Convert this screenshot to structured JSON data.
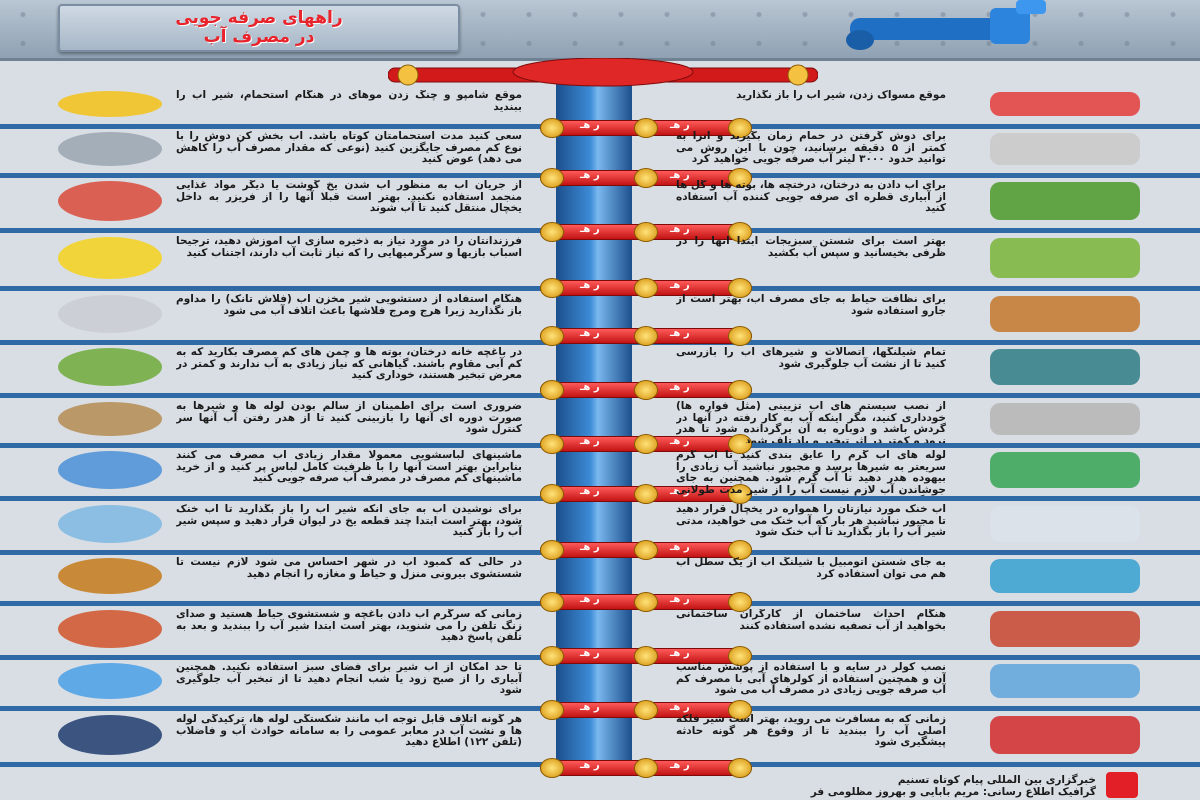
{
  "header": {
    "title_line1": "راههای صرفه جویی",
    "title_line2": "در مصرف آب"
  },
  "valve_label": "ر هـ",
  "left_tips": [
    "موقع شامپو و چنگ زدن موهای در هنگام استحمام، شیر آب را ببندید",
    "سعی کنید مدت استحمامتان کوتاه باشد. آب بخش کن دوش را با نوع کم مصرف جایگزین کنید (نوعی که مقدار مصرف آب را کاهش می دهد) عوض کنید",
    "از جریان آب به منظور آب شدن یخ گوشت یا دیگر مواد غذایی منجمد استفاده نکنید. بهتر است قبلا آنها را از فریزر به داخل یخچال منتقل کنید تا آب شوند",
    "فرزندانتان را در مورد نیاز به ذخیره سازی آب آموزش دهید، ترجیحا اسباب بازیها و سرگرمیهایی را که نیاز ثابت آب دارند، اجتناب کنید",
    "هنگام استفاده از دستشویی شیر مخزن آب (فلاش تانک) را مداوم باز نگذارید زیرا هرج ومرج فلاشها باعث اتلاف آب می شود",
    "در باغچه خانه درختان، بوته ها و چمن های کم مصرف بکارید که به کم آبی مقاوم باشند. گیاهانی که نیاز زیادی به آب ندارند و کمتر در معرض تبخیر هستند، خوداری کنید",
    "ضروری است برای اطمینان از سالم بودن لوله ها و شیرها به صورت دوره ای آنها را بازبینی کنید تا از هدر رفتن آب آنها سر کنترل شود",
    "ماشینهای لباسشویی معمولا مقدار زیادی آب مصرف می کنند بنابراین بهتر است آنها را با ظرفیت کامل لباس پر کنید و از خرید ماشینهای کم مصرف در مصرف آب صرفه جویی کنید",
    "برای نوشیدن آب به جای آنکه شیر آب را باز بگذارید تا آب خنک شود، بهتر است ابتدا چند قطعه یخ در لیوان قرار دهید و سپس شیر آب را باز کنید",
    "در حالی که کمبود آب در شهر احساس می شود لازم نیست تا شستشوی بیرونی منزل و حیاط و مغازه را انجام دهید",
    "زمانی که سرگرم آب دادن باغچه و شستشوی حیاط هستید و صدای زنگ تلفن را می شنوید، بهتر است ابتدا شیر آب را ببندید و بعد به تلفن پاسخ دهید",
    "تا حد امکان از آب شیر برای فضای سبز استفاده نکنید. همچنین آبیاری را از صبح زود یا شب انجام دهید تا از تبخیر آب جلوگیری شود",
    "هر گونه اتلاف قابل توجه آب مانند شکستگی لوله ها، ترکیدگی لوله ها و نشت آب در معابر عمومی را به سامانه حوادث آب و فاضلاب (تلفن ۱۲۲) اطلاع دهید"
  ],
  "right_tips": [
    "موقع مسواک زدن، شیر آب را باز نگذارید",
    "برای دوش گرفتن در حمام زمان بگیرید و آنرا به کمتر از ۵ دقیقه برسانید، چون با این روش می توانید حدود ۳۰۰۰ لیتر آب صرفه جویی خواهید کرد",
    "برای آب دادن به درختان، درختچه ها، بوته ها و گل ها از آبیاری قطره ای صرفه جویی کننده آب استفاده کنید",
    "بهتر است برای شستن سبزیجات ابتدا آنها را در ظرفی بخیسانید و سپس آب بکشید",
    "برای نظافت حیاط به جای مصرف آب، بهتر است از جارو استفاده شود",
    "تمام شیلنگها، اتصالات و شیرهای آب را بازرسی کنید تا از نشت آب جلوگیری شود",
    "از نصب سیستم های آب تزیینی (مثل فواره ها) خودداری کنید، مگر اینکه آب به کار رفته در آنها در گردش باشد و دوباره به آن برگردانده شود تا هدر نرود و کمتر در اثر تبخیر و باد تلف شود",
    "لوله های آب گرم را عایق بندی کنید تا آب گرم سریعتر به شیرها برسد و مجبور نباشید آب زیادی را بیهوده هدر دهید تا آب گرم شود. همچنین به جای جوشاندن آب لازم نیست آب را از شیر مدت طولانی باز نگه دارید",
    "آب خنک مورد نیازتان را همواره در یخچال قرار دهید تا مجبور نباشید هر بار که آب خنک می خواهید، مدتی شیر آب را باز بگذارید تا آب خنک شود",
    "به جای شستن اتومبیل با شیلنگ آب از یک سطل آب هم می توان استفاده کرد",
    "هنگام احداث ساختمان از کارگران ساختمانی بخواهید از آب تصفیه نشده استفاده کنند",
    "نصب کولر در سایه و با استفاده از پوشش مناسب آن و همچنین استفاده از کولرهای آبی با مصرف کم آب صرفه جویی زیادی در مصرف آب می شود",
    "زمانی که به مسافرت می روید، بهتر است شیر فلکه اصلی آب را ببندید تا از وقوع هر گونه حادثه پیشگیری شود"
  ],
  "footer": {
    "line1": "خبرگزاری بین المللی پیام کوتاه تسنیم",
    "line2": "گرافیک اطلاع رسانی: مریم بابایی و بهروز مظلومی فر"
  },
  "colors": {
    "pipe": "#2f6aa6",
    "valve": "#d91c1c",
    "title": "#e8232b"
  },
  "icons": [
    "shampoo-icon",
    "toothbrush-icon",
    "shower-icon",
    "clock-icon",
    "meat-icon",
    "sprinkler-icon",
    "duck-icon",
    "vegetables-icon",
    "toilet-icon",
    "broom-icon",
    "plant-icon",
    "hose-icon",
    "toolbox-icon",
    "fountain-icon",
    "washer-icon",
    "water-heater-icon",
    "glass-icon",
    "fridge-icon",
    "mop-icon",
    "car-wash-icon",
    "phone-icon",
    "bricks-icon",
    "rain-plant-icon",
    "cooler-icon",
    "telephone-icon",
    "main-valve-icon"
  ]
}
